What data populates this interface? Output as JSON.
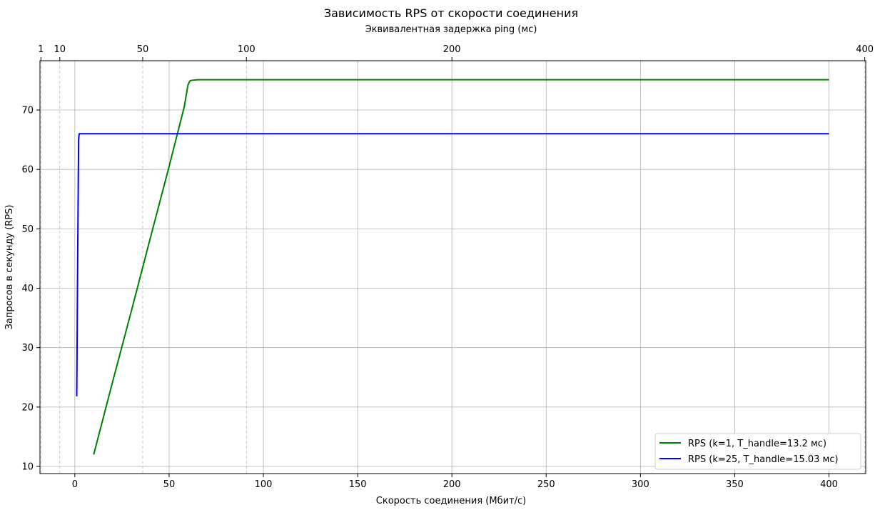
{
  "chart_data": {
    "type": "line",
    "title": "Зависимость RPS от скорости соединения",
    "xlabel": "Скорость соединения (Мбит/с)",
    "ylabel": "Запросов в секунду (RPS)",
    "xlim": [
      -18.5,
      419.5
    ],
    "ylim": [
      8.8,
      78.3
    ],
    "x_ticks": [
      0,
      50,
      100,
      150,
      200,
      250,
      300,
      350,
      400
    ],
    "y_ticks": [
      10,
      20,
      30,
      40,
      50,
      60,
      70
    ],
    "grid": true,
    "legend": "bottom-right",
    "top_axis": {
      "label": "Эквивалентная задержка ping (мс)",
      "ticks": [
        {
          "label": "1",
          "x": -18
        },
        {
          "label": "10",
          "x": -8
        },
        {
          "label": "50",
          "x": 36
        },
        {
          "label": "100",
          "x": 91
        },
        {
          "label": "200",
          "x": 200
        },
        {
          "label": "400",
          "x": 419
        }
      ]
    },
    "series": [
      {
        "name": "RPS (k=1, T_handle=13.2 мс)",
        "color": "#008000",
        "points": [
          [
            10,
            12
          ],
          [
            20,
            24.2
          ],
          [
            30,
            36.2
          ],
          [
            40,
            48.4
          ],
          [
            50,
            60.5
          ],
          [
            58,
            70.5
          ],
          [
            60,
            74.2
          ],
          [
            61,
            74.9
          ],
          [
            62,
            75.0
          ],
          [
            65,
            75.1
          ],
          [
            100,
            75.1
          ],
          [
            200,
            75.1
          ],
          [
            300,
            75.1
          ],
          [
            400,
            75.1
          ]
        ]
      },
      {
        "name": "RPS (k=25, T_handle=15.03 мс)",
        "color": "#0000ff",
        "points": [
          [
            1,
            21.8
          ],
          [
            1.5,
            45
          ],
          [
            2,
            65
          ],
          [
            2.3,
            66
          ],
          [
            10,
            66
          ],
          [
            100,
            66
          ],
          [
            200,
            66
          ],
          [
            300,
            66
          ],
          [
            400,
            66
          ]
        ]
      }
    ]
  }
}
